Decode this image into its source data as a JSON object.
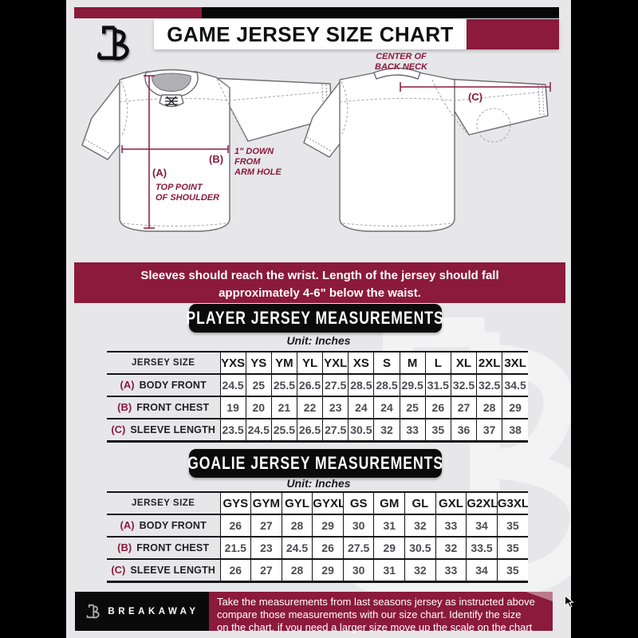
{
  "colors": {
    "maroon": "#8b1a3c",
    "black": "#0a0a0a",
    "background_gray": "#e7e7e9"
  },
  "header": {
    "title": "GAME JERSEY SIZE CHART"
  },
  "diagram": {
    "front": {
      "a_label": "(A)",
      "a_note_line1": "TOP POINT",
      "a_note_line2": "OF SHOULDER",
      "b_label": "(B)",
      "b_note_line1": "1\" DOWN",
      "b_note_line2": "FROM",
      "b_note_line3": "ARM HOLE"
    },
    "back": {
      "c_label": "(C)",
      "c_note_line1": "CENTER OF",
      "c_note_line2": "BACK NECK"
    }
  },
  "banner": {
    "line1": "Sleeves should reach the wrist. Length of the jersey should fall",
    "line2": "approximately 4-6\" below the waist."
  },
  "sections": [
    {
      "title": "PLAYER JERSEY MEASUREMENTS",
      "unit": "Unit: Inches",
      "table": {
        "size_label": "JERSEY SIZE",
        "sizes": [
          "YXS",
          "YS",
          "YM",
          "YL",
          "YXL",
          "XS",
          "S",
          "M",
          "L",
          "XL",
          "2XL",
          "3XL"
        ],
        "rows": [
          {
            "key": "(A)",
            "label": "BODY FRONT",
            "values": [
              "24.5",
              "25",
              "25.5",
              "26.5",
              "27.5",
              "28.5",
              "28.5",
              "29.5",
              "31.5",
              "32.5",
              "32.5",
              "34.5"
            ]
          },
          {
            "key": "(B)",
            "label": "FRONT CHEST",
            "values": [
              "19",
              "20",
              "21",
              "22",
              "23",
              "24",
              "24",
              "25",
              "26",
              "27",
              "28",
              "29"
            ]
          },
          {
            "key": "(C)",
            "label": "SLEEVE LENGTH",
            "values": [
              "23.5",
              "24.5",
              "25.5",
              "26.5",
              "27.5",
              "30.5",
              "32",
              "33",
              "35",
              "36",
              "37",
              "38"
            ]
          }
        ]
      }
    },
    {
      "title": "GOALIE JERSEY MEASUREMENTS",
      "unit": "Unit: Inches",
      "table": {
        "size_label": "JERSEY SIZE",
        "sizes": [
          "GYS",
          "GYM",
          "GYL",
          "GYXL",
          "GS",
          "GM",
          "GL",
          "GXL",
          "G2XL",
          "G3XL"
        ],
        "rows": [
          {
            "key": "(A)",
            "label": "BODY FRONT",
            "values": [
              "26",
              "27",
              "28",
              "29",
              "30",
              "31",
              "32",
              "33",
              "34",
              "35"
            ]
          },
          {
            "key": "(B)",
            "label": "FRONT CHEST",
            "values": [
              "21.5",
              "23",
              "24.5",
              "26",
              "27.5",
              "29",
              "30.5",
              "32",
              "33.5",
              "35"
            ]
          },
          {
            "key": "(C)",
            "label": "SLEEVE LENGTH",
            "values": [
              "26",
              "27",
              "28",
              "29",
              "30",
              "31",
              "32",
              "33",
              "34",
              "35"
            ]
          }
        ]
      }
    }
  ],
  "footer": {
    "brand": "BREAKAWAY",
    "line1": "Take the measurements from last seasons jersey as instructed above",
    "line2": "compare those measurements  with our size chart. Identify the size",
    "line3": "on the chart, if you need a larger size move up the scale on the chart"
  }
}
